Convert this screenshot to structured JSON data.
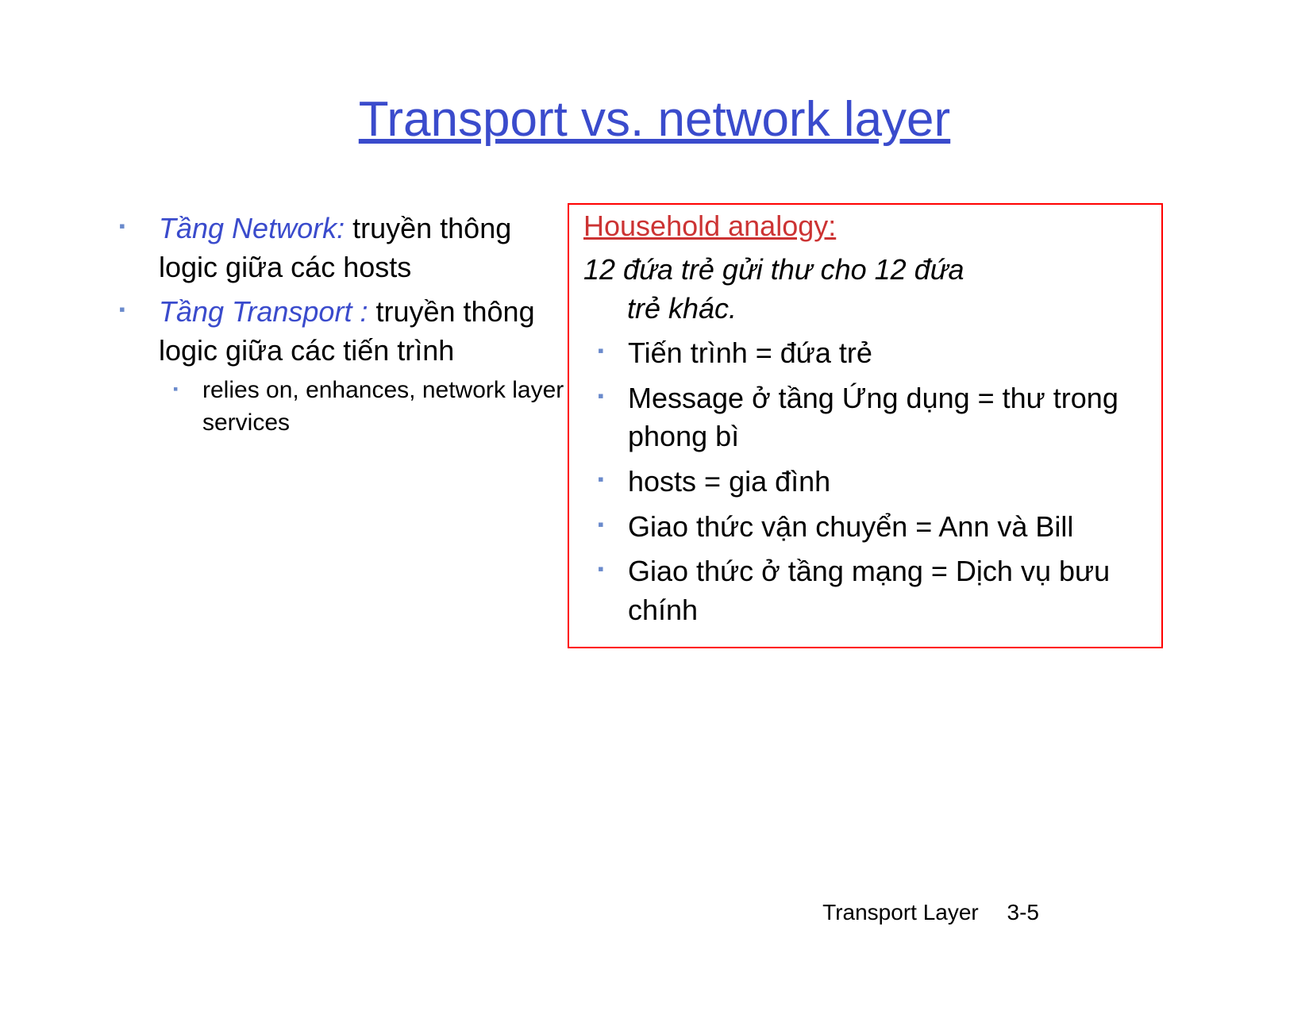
{
  "title": {
    "text": "Transport vs. network layer",
    "color": "#3a4bcc"
  },
  "left": {
    "items": [
      {
        "term": "Tầng Network:",
        "rest": " truyền thông logic giữa các hosts",
        "termColor": "#3a4bcc"
      },
      {
        "term": "Tầng Transport :",
        "rest": " truyền thông logic giữa các tiến trình",
        "termColor": "#3a4bcc",
        "sub": [
          "relies on, enhances, network layer services"
        ]
      }
    ]
  },
  "right": {
    "heading": "Household analogy:",
    "headingColor": "#cc3333",
    "lead1": "12 đứa trẻ gửi thư cho 12 đứa",
    "lead2": "trẻ khác.",
    "items": [
      "Tiến trình = đứa trẻ",
      "Message ở tầng Ứng dụng = thư trong phong bì",
      "hosts = gia đình",
      "Giao thức vận chuyển = Ann và Bill",
      "Giao thức ở tầng mạng = Dịch vụ bưu chính"
    ],
    "borderColor": "#ff0000"
  },
  "footer": {
    "label": "Transport Layer",
    "page": "3-5"
  },
  "bulletColor": "#6a8acc"
}
